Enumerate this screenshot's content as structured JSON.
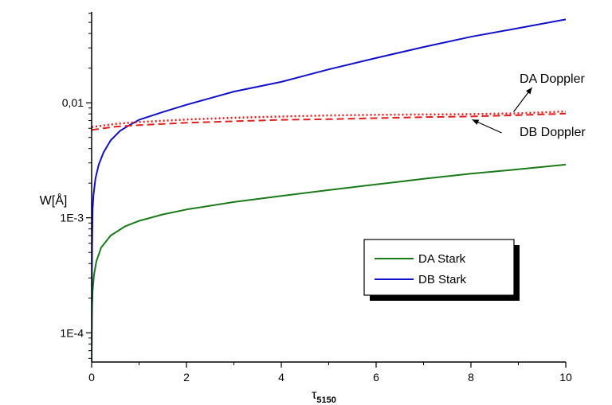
{
  "chart_data": {
    "type": "line",
    "title": "",
    "xlabel": "τ",
    "xlabel_sub": "5150",
    "ylabel": "W[Å]",
    "xlim": [
      0,
      10
    ],
    "ylim": [
      5.57e-05,
      0.0616
    ],
    "yscale": "log",
    "xticks": [
      0,
      2,
      4,
      6,
      8,
      10
    ],
    "yticks": [
      {
        "value": 0.0001,
        "label": "1E-4"
      },
      {
        "value": 0.001,
        "label": "1E-3"
      },
      {
        "value": 0.01,
        "label": "0,01"
      }
    ],
    "grid": false,
    "legend": {
      "position": "bottom-right",
      "entries": [
        "DA Stark",
        "DB Stark"
      ]
    },
    "series": [
      {
        "name": "DA Stark",
        "color": "#1a7a1a",
        "style": "solid",
        "x": [
          0,
          0.005,
          0.01,
          0.02,
          0.05,
          0.1,
          0.2,
          0.4,
          0.7,
          1,
          1.5,
          2,
          3,
          4,
          5,
          6,
          7,
          8,
          9,
          10
        ],
        "y": [
          5e-05,
          0.00012,
          0.00017,
          0.00023,
          0.00032,
          0.00042,
          0.00055,
          0.0007,
          0.00084,
          0.00094,
          0.00107,
          0.00118,
          0.00137,
          0.00155,
          0.00174,
          0.00195,
          0.00218,
          0.00242,
          0.00264,
          0.0029
        ]
      },
      {
        "name": "DB Stark",
        "color": "#1010c8",
        "style": "solid",
        "x": [
          0,
          0.005,
          0.01,
          0.02,
          0.04,
          0.08,
          0.15,
          0.25,
          0.4,
          0.6,
          0.8,
          1,
          1.5,
          2,
          3,
          4,
          5,
          6,
          7,
          8,
          9,
          10
        ],
        "y": [
          7e-05,
          0.0003,
          0.0006,
          0.0012,
          0.0016,
          0.0022,
          0.0029,
          0.0037,
          0.0047,
          0.0057,
          0.0064,
          0.0071,
          0.0083,
          0.0096,
          0.0125,
          0.0152,
          0.0195,
          0.0245,
          0.0305,
          0.0375,
          0.0445,
          0.053
        ]
      },
      {
        "name": "DA Doppler",
        "color": "#e02020",
        "style": "dotted",
        "x": [
          0,
          0.5,
          1,
          2,
          3,
          4,
          5,
          6,
          7,
          8,
          9,
          10
        ],
        "y": [
          0.00615,
          0.00655,
          0.0068,
          0.00715,
          0.0074,
          0.0076,
          0.00775,
          0.00785,
          0.0079,
          0.00795,
          0.0081,
          0.0084
        ]
      },
      {
        "name": "DB Doppler",
        "color": "#e02020",
        "style": "dashed",
        "x": [
          0,
          0.5,
          1,
          2,
          3,
          4,
          5,
          6,
          7,
          8,
          9,
          10
        ],
        "y": [
          0.0058,
          0.0062,
          0.0064,
          0.0067,
          0.0069,
          0.0071,
          0.0072,
          0.00735,
          0.0075,
          0.0076,
          0.0078,
          0.00805
        ]
      }
    ],
    "annotations": [
      {
        "text": "DA Doppler",
        "target_series": "DA Doppler"
      },
      {
        "text": "DB Doppler",
        "target_series": "DB Doppler"
      }
    ]
  }
}
